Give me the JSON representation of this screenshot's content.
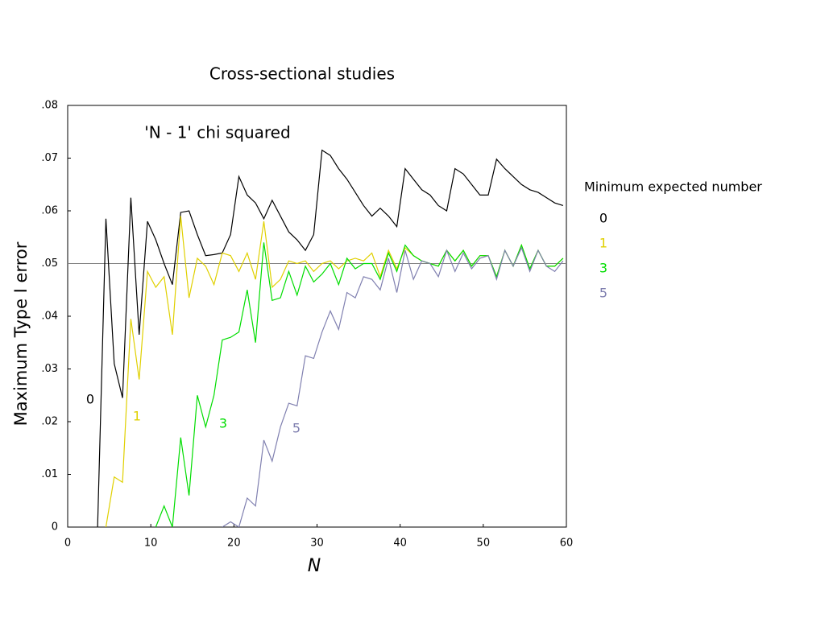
{
  "chart_data": {
    "type": "line",
    "title": "Cross-sectional studies",
    "subtitle": "'N - 1' chi squared",
    "xlabel": "N",
    "ylabel": "Maximum Type I error",
    "legend_title": "Minimum expected number",
    "legend": "right",
    "hline": 0.05,
    "hline_color": "#808080",
    "xlim": [
      0,
      60
    ],
    "xticks": [
      0,
      10,
      20,
      30,
      40,
      50,
      60
    ],
    "ylim": [
      0,
      0.08
    ],
    "yticks": [
      0,
      {
        "value": 0.01,
        "label": ".01"
      },
      {
        "value": 0.02,
        "label": ".02"
      },
      {
        "value": 0.03,
        "label": ".03"
      },
      {
        "value": 0.04,
        "label": ".04"
      },
      {
        "value": 0.05,
        "label": ".05"
      },
      {
        "value": 0.06,
        "label": ".06"
      },
      {
        "value": 0.07,
        "label": ".07"
      },
      {
        "value": 0.08,
        "label": ".08"
      }
    ],
    "x": [
      3.6,
      4.6,
      5.6,
      6.6,
      7.6,
      8.6,
      9.6,
      10.6,
      11.6,
      12.6,
      13.6,
      14.6,
      15.6,
      16.6,
      17.6,
      18.6,
      19.6,
      20.6,
      21.6,
      22.6,
      23.6,
      24.6,
      25.6,
      26.6,
      27.6,
      28.6,
      29.6,
      30.6,
      31.6,
      32.6,
      33.6,
      34.6,
      35.6,
      36.6,
      37.6,
      38.6,
      39.6,
      40.6,
      41.6,
      42.6,
      43.6,
      44.6,
      45.6,
      46.6,
      47.6,
      48.6,
      49.6,
      50.6,
      51.6,
      52.6,
      53.6,
      54.6,
      55.6,
      56.6,
      57.6,
      58.6,
      59.6
    ],
    "series": [
      {
        "name": "0",
        "color": "#000000",
        "values": [
          0,
          0.0585,
          0.031,
          0.0245,
          0.0625,
          0.0365,
          0.058,
          0.0545,
          0.05,
          0.046,
          0.0597,
          0.06,
          0.0555,
          0.0515,
          0.0517,
          0.052,
          0.0555,
          0.0665,
          0.063,
          0.0615,
          0.0585,
          0.062,
          0.059,
          0.056,
          0.0545,
          0.0525,
          0.0555,
          0.0715,
          0.0705,
          0.068,
          0.066,
          0.0635,
          0.061,
          0.059,
          0.0605,
          0.059,
          0.057,
          0.068,
          0.066,
          0.064,
          0.063,
          0.061,
          0.06,
          0.068,
          0.067,
          0.065,
          0.063,
          0.063,
          0.0698,
          0.068,
          0.0665,
          0.065,
          0.064,
          0.0635,
          0.0625,
          0.0615,
          0.061
        ]
      },
      {
        "name": "1",
        "color": "#e0d000",
        "values": [
          null,
          0,
          0.0095,
          0.0085,
          0.0395,
          0.028,
          0.0485,
          0.0455,
          0.0475,
          0.0365,
          0.059,
          0.0435,
          0.051,
          0.0495,
          0.046,
          0.052,
          0.0515,
          0.0485,
          0.052,
          0.047,
          0.058,
          0.0455,
          0.047,
          0.0505,
          0.05,
          0.0505,
          0.0485,
          0.05,
          0.0505,
          0.049,
          0.0505,
          0.051,
          0.0505,
          0.052,
          0.0475,
          0.0525,
          0.049,
          0.053,
          0.0515,
          0.0505,
          0.05,
          0.0495,
          0.0525,
          0.0505,
          0.0525,
          0.0495,
          0.0515,
          0.0515,
          0.0475,
          0.0525,
          0.0495,
          0.0535,
          0.049,
          0.0525,
          0.0495,
          0.0495,
          0.051
        ]
      },
      {
        "name": "3",
        "color": "#00dd00",
        "values": [
          null,
          null,
          null,
          null,
          null,
          null,
          null,
          0,
          0.004,
          0,
          0.017,
          0.006,
          0.025,
          0.019,
          0.025,
          0.0355,
          0.036,
          0.037,
          0.045,
          0.035,
          0.054,
          0.043,
          0.0435,
          0.0485,
          0.044,
          0.0495,
          0.0465,
          0.048,
          0.05,
          0.046,
          0.051,
          0.049,
          0.05,
          0.05,
          0.047,
          0.052,
          0.0485,
          0.0535,
          0.0515,
          0.0505,
          0.05,
          0.0495,
          0.0525,
          0.0505,
          0.0525,
          0.0495,
          0.0515,
          0.0515,
          0.0475,
          0.0525,
          0.0495,
          0.0535,
          0.049,
          0.0525,
          0.0495,
          0.0495,
          0.051
        ]
      },
      {
        "name": "5",
        "color": "#8080b0",
        "values": [
          null,
          null,
          null,
          null,
          null,
          null,
          null,
          null,
          null,
          null,
          null,
          null,
          null,
          null,
          null,
          0,
          0.001,
          0,
          0.0055,
          0.004,
          0.0165,
          0.0125,
          0.019,
          0.0235,
          0.023,
          0.0325,
          0.032,
          0.037,
          0.041,
          0.0375,
          0.0445,
          0.0435,
          0.0475,
          0.047,
          0.045,
          0.051,
          0.0445,
          0.0525,
          0.047,
          0.0505,
          0.05,
          0.0475,
          0.0525,
          0.0485,
          0.052,
          0.049,
          0.051,
          0.0515,
          0.047,
          0.0525,
          0.0495,
          0.053,
          0.0485,
          0.0525,
          0.0495,
          0.0485,
          0.0505
        ]
      }
    ]
  }
}
